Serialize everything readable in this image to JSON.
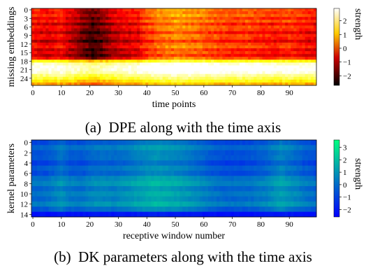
{
  "chart_data": [
    {
      "type": "heatmap",
      "caption": "(a)  DPE along with the time axis",
      "xlabel": "time points",
      "ylabel": "missing embeddings",
      "colorbar_label": "strength",
      "colormap": "hot",
      "x_range": [
        0,
        99
      ],
      "y_range": [
        0,
        26
      ],
      "xticks": [
        "0",
        "10",
        "20",
        "30",
        "40",
        "50",
        "60",
        "70",
        "80",
        "90"
      ],
      "yticks": [
        "0",
        "3",
        "6",
        "9",
        "12",
        "15",
        "18",
        "21",
        "24"
      ],
      "colorbar_ticks": [
        "2",
        "1",
        "0",
        "−1",
        "−2"
      ],
      "value_range": [
        -2.7,
        2.9
      ],
      "rows": 27,
      "cols": 100,
      "row_profile": [
        -0.2,
        -0.4,
        -0.1,
        -0.6,
        -0.2,
        -0.9,
        -0.3,
        -0.5,
        -1.0,
        -0.4,
        -0.6,
        -1.1,
        -0.5,
        -0.3,
        -0.9,
        -0.6,
        -1.0,
        -0.4,
        1.4,
        2.6,
        2.9,
        2.9,
        2.7,
        2.2,
        1.8,
        1.3,
        0.7
      ],
      "column_profile": [
        {
          "x": 0,
          "v": 0.0
        },
        {
          "x": 5,
          "v": -0.3
        },
        {
          "x": 10,
          "v": -0.1
        },
        {
          "x": 15,
          "v": -0.8
        },
        {
          "x": 18,
          "v": -1.2
        },
        {
          "x": 21,
          "v": -1.6
        },
        {
          "x": 24,
          "v": -1.3
        },
        {
          "x": 28,
          "v": -0.6
        },
        {
          "x": 33,
          "v": -0.3
        },
        {
          "x": 37,
          "v": -0.2
        },
        {
          "x": 40,
          "v": 0.4
        },
        {
          "x": 45,
          "v": 0.8
        },
        {
          "x": 50,
          "v": 1.0
        },
        {
          "x": 55,
          "v": 0.9
        },
        {
          "x": 60,
          "v": 0.7
        },
        {
          "x": 65,
          "v": 0.5
        },
        {
          "x": 70,
          "v": 0.3
        },
        {
          "x": 75,
          "v": 0.4
        },
        {
          "x": 80,
          "v": 0.2
        },
        {
          "x": 85,
          "v": 0.1
        },
        {
          "x": 90,
          "v": 0.3
        },
        {
          "x": 95,
          "v": 0.0
        },
        {
          "x": 99,
          "v": -0.1
        }
      ]
    },
    {
      "type": "heatmap",
      "caption": "(b)  DK parameters along with the time axis",
      "xlabel": "receptive window number",
      "ylabel": "kernel parameters",
      "colorbar_label": "strength",
      "colormap": "winter",
      "x_range": [
        0,
        99
      ],
      "y_range": [
        0,
        14
      ],
      "xticks": [
        "0",
        "10",
        "20",
        "30",
        "40",
        "50",
        "60",
        "70",
        "80",
        "90"
      ],
      "yticks": [
        "0",
        "2",
        "4",
        "6",
        "8",
        "10",
        "12",
        "14"
      ],
      "colorbar_ticks": [
        "3",
        "2",
        "1",
        "0",
        "−1",
        "−2"
      ],
      "value_range": [
        -2.6,
        3.6
      ],
      "rows": 15,
      "cols": 100,
      "row_profile": [
        -0.4,
        0.4,
        -0.1,
        0.0,
        -0.6,
        0.1,
        -0.3,
        0.6,
        1.0,
        0.3,
        0.8,
        0.4,
        1.0,
        0.0,
        -2.1
      ],
      "column_profile": [
        {
          "x": 0,
          "v": -0.6
        },
        {
          "x": 5,
          "v": -0.5
        },
        {
          "x": 10,
          "v": 0.2
        },
        {
          "x": 13,
          "v": -0.3
        },
        {
          "x": 17,
          "v": -0.4
        },
        {
          "x": 22,
          "v": 0.1
        },
        {
          "x": 28,
          "v": 0.0
        },
        {
          "x": 33,
          "v": 0.3
        },
        {
          "x": 38,
          "v": 0.7
        },
        {
          "x": 43,
          "v": 1.0
        },
        {
          "x": 48,
          "v": 0.8
        },
        {
          "x": 53,
          "v": 0.5
        },
        {
          "x": 58,
          "v": 0.1
        },
        {
          "x": 63,
          "v": -0.4
        },
        {
          "x": 68,
          "v": -0.7
        },
        {
          "x": 73,
          "v": -0.6
        },
        {
          "x": 78,
          "v": -0.4
        },
        {
          "x": 82,
          "v": -0.1
        },
        {
          "x": 87,
          "v": 0.6
        },
        {
          "x": 90,
          "v": 0.3
        },
        {
          "x": 95,
          "v": -0.3
        },
        {
          "x": 99,
          "v": -0.6
        }
      ]
    }
  ]
}
